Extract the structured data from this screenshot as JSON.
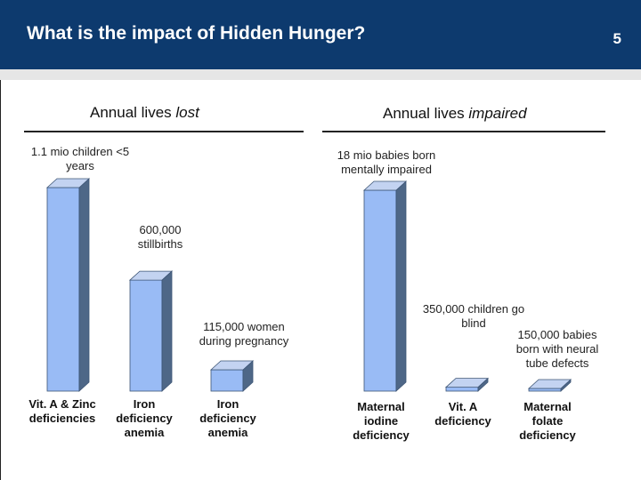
{
  "header": {
    "title": "What is the impact of Hidden Hunger?",
    "page_number": "5"
  },
  "chart_data": {
    "type": "bar",
    "sections": [
      {
        "title_prefix": "Annual lives ",
        "title_emphasis": "lost",
        "bars": [
          {
            "category": "Vit. A & Zinc deficiencies",
            "value": 1100000,
            "label": "1.1 mio children <5 years"
          },
          {
            "category": "Iron deficiency anemia",
            "value": 600000,
            "label": "600,000 stillbirths"
          },
          {
            "category": "Iron deficiency anemia",
            "value": 115000,
            "label": "115,000 women during pregnancy"
          }
        ]
      },
      {
        "title_prefix": "Annual lives ",
        "title_emphasis": "impaired",
        "bars": [
          {
            "category": "Maternal iodine deficiency",
            "value": 18000000,
            "label": "18 mio babies born mentally impaired"
          },
          {
            "category": "Vit. A deficiency",
            "value": 350000,
            "label": "350,000 children go blind"
          },
          {
            "category": "Maternal folate deficiency",
            "value": 150000,
            "label": "150,000 babies born with neural tube defects"
          }
        ]
      }
    ],
    "colors": {
      "front": "#99bbf5",
      "side": "#4e6787",
      "top": "#c3d3f1"
    }
  }
}
